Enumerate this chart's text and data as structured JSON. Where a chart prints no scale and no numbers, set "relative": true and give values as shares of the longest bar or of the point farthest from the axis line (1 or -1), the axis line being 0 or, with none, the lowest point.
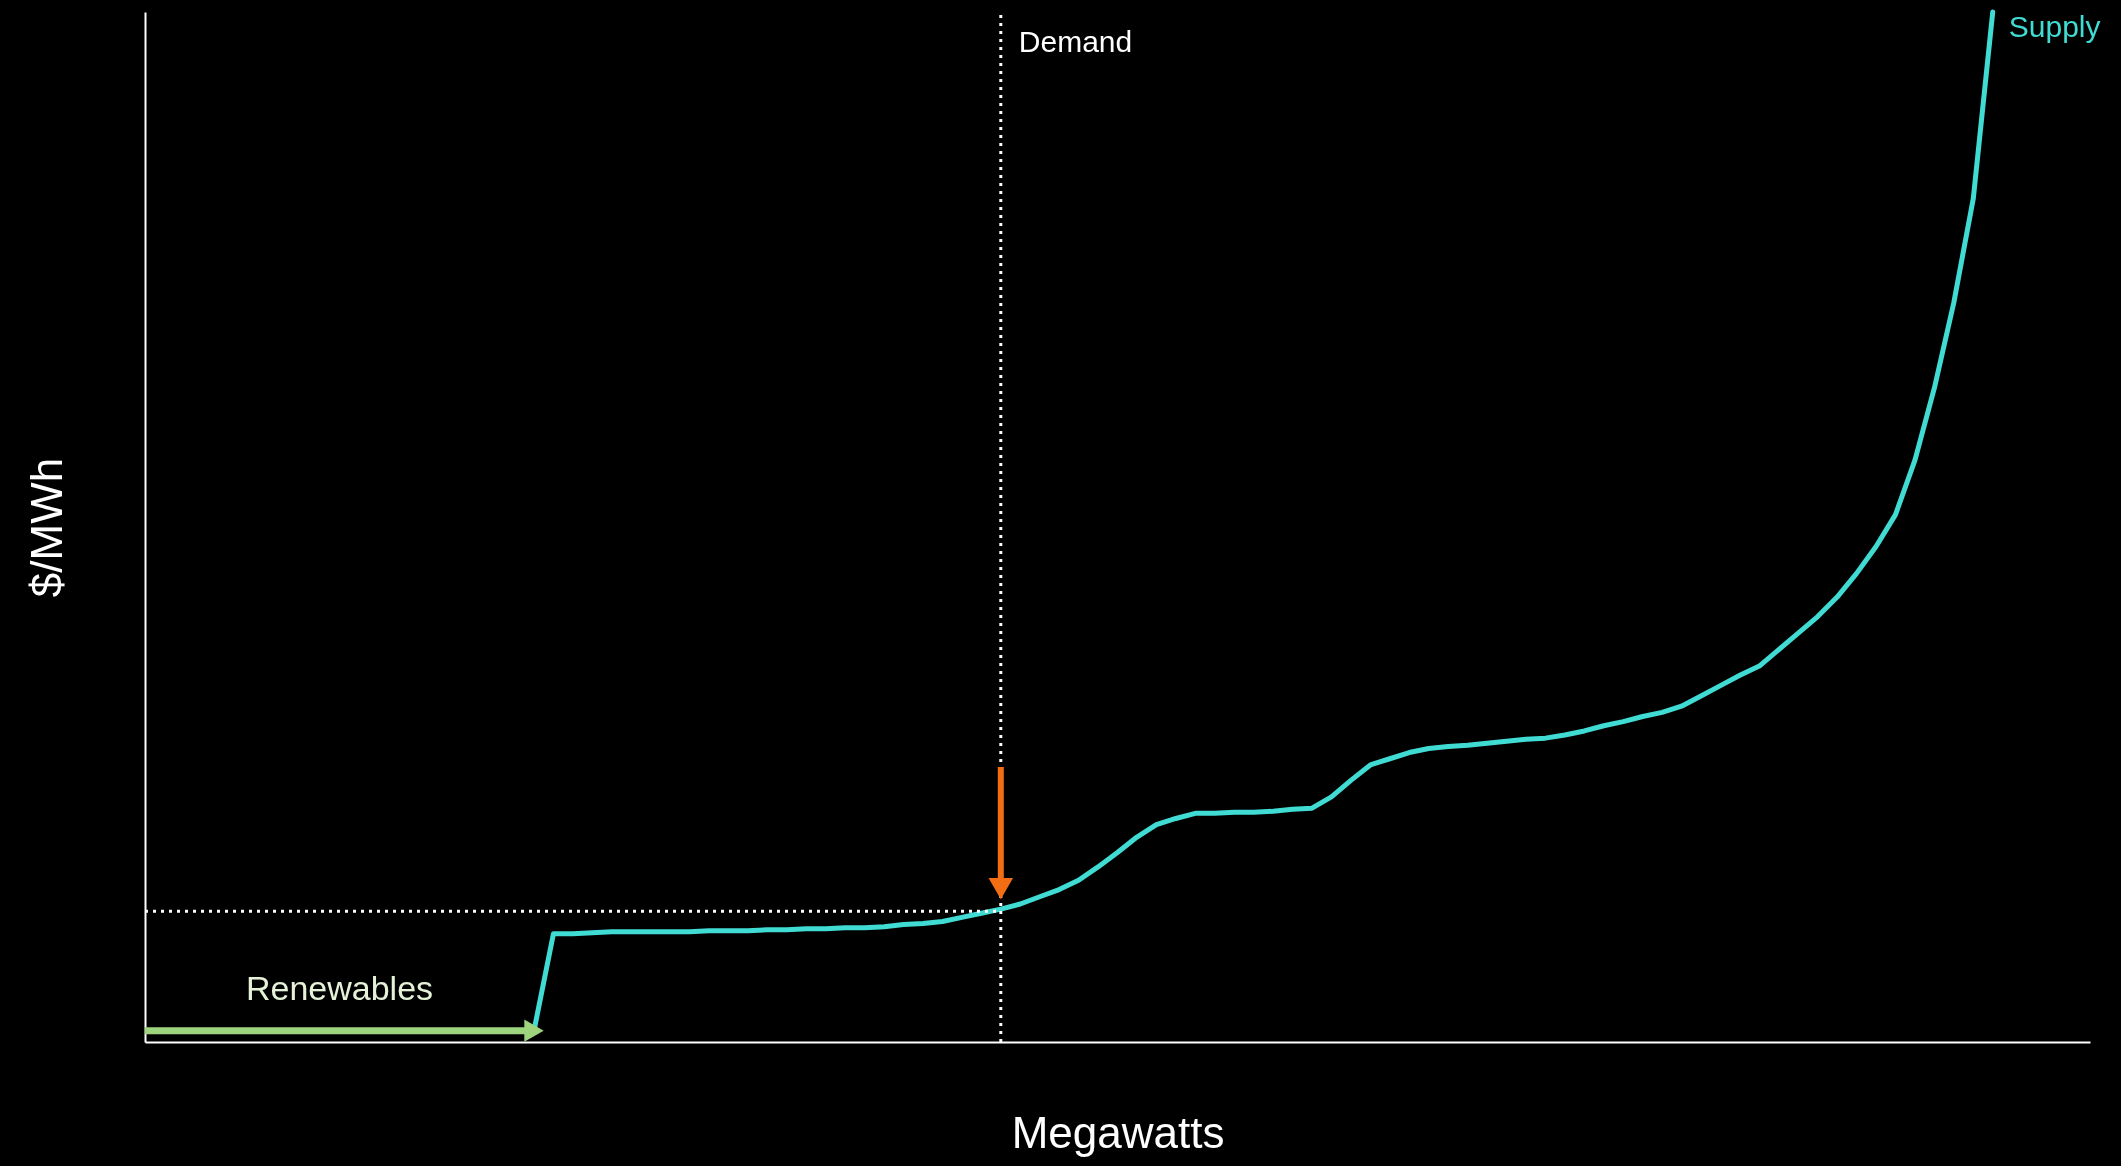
{
  "chart_data": {
    "type": "line",
    "relative": true,
    "xlabel": "Megawatts",
    "ylabel": "$/MWh",
    "categories": [
      null,
      null,
      null,
      null,
      null,
      null,
      null,
      null,
      null,
      null,
      null,
      null,
      null,
      null,
      null,
      null,
      null,
      null,
      null,
      null,
      null,
      null,
      null,
      null,
      null,
      null,
      null,
      null,
      null,
      null,
      null,
      null,
      null,
      null,
      null,
      null,
      null,
      null,
      null,
      null,
      null,
      null,
      null,
      null,
      null,
      null,
      null,
      null,
      null,
      null,
      null,
      null,
      null,
      null,
      null,
      null,
      null,
      null,
      null,
      null,
      null,
      null,
      null,
      null,
      null,
      null,
      null,
      null,
      null,
      null,
      null,
      null,
      null,
      null,
      null,
      null,
      null,
      null,
      null,
      null,
      null,
      null,
      null,
      null,
      null,
      null,
      null,
      null,
      null,
      null,
      null,
      null,
      null,
      null,
      null,
      null,
      null,
      null,
      null,
      null,
      null
    ],
    "series": [
      {
        "name": "Supply",
        "color": "#40dcd4",
        "values": [
          null,
          null,
          null,
          null,
          null,
          null,
          null,
          null,
          null,
          null,
          null,
          null,
          null,
          null,
          null,
          null,
          null,
          null,
          null,
          null,
          0.011,
          0.105,
          0.105,
          0.106,
          0.107,
          0.107,
          0.107,
          0.107,
          0.107,
          0.108,
          0.108,
          0.108,
          0.109,
          0.109,
          0.11,
          0.11,
          0.111,
          0.111,
          0.112,
          0.114,
          0.115,
          0.117,
          0.121,
          0.125,
          0.129,
          0.134,
          0.141,
          0.148,
          0.157,
          0.17,
          0.184,
          0.199,
          0.211,
          0.217,
          0.222,
          0.222,
          0.223,
          0.223,
          0.224,
          0.226,
          0.227,
          0.238,
          0.254,
          0.269,
          0.275,
          0.281,
          0.285,
          0.287,
          0.288,
          0.29,
          0.292,
          0.294,
          0.295,
          0.298,
          0.302,
          0.307,
          0.311,
          0.316,
          0.32,
          0.326,
          0.336,
          0.346,
          0.356,
          0.365,
          0.381,
          0.397,
          0.413,
          0.432,
          0.455,
          0.481,
          0.512,
          0.565,
          0.635,
          0.718,
          0.819,
          1,
          null,
          null,
          null,
          null,
          null
        ]
      }
    ],
    "ref_lines": [
      {
        "axis": "y",
        "value": 0.127,
        "color": "#ffffff",
        "line_style": "dotted"
      }
    ],
    "annotations": [
      "Renewables",
      "Demand"
    ],
    "tick_labels": false,
    "marker": "none",
    "line_style": "solid"
  }
}
